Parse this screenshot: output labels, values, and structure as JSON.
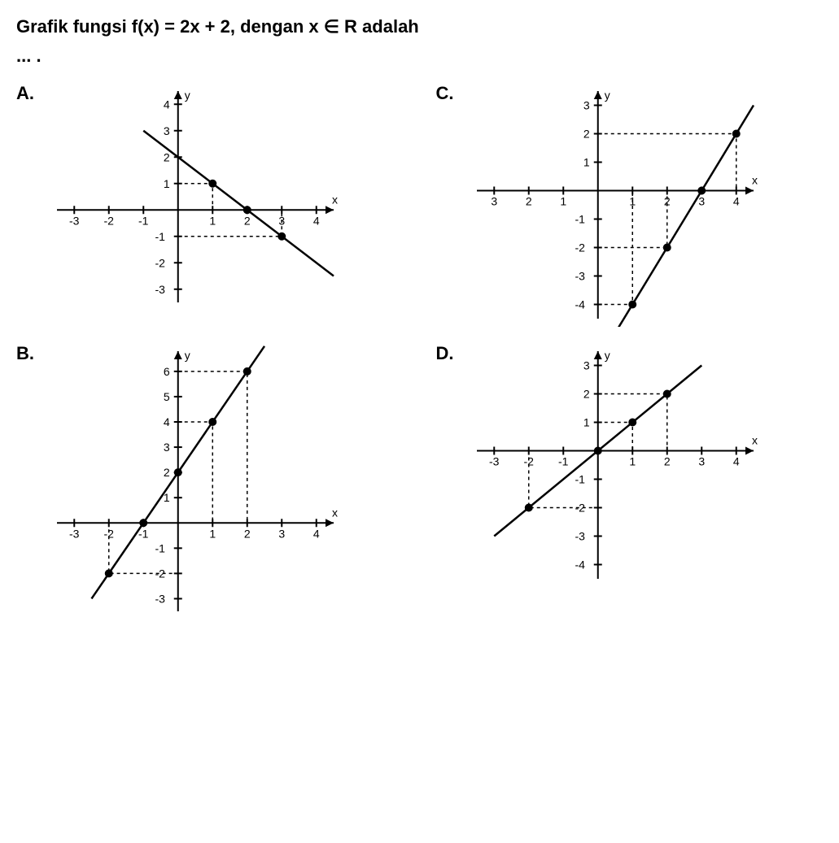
{
  "question": "Grafik fungsi f(x) = 2x + 2, dengan x ∈ R adalah",
  "dots": "... .",
  "options": {
    "A": {
      "label": "A.",
      "type": "line",
      "xlabel": "x",
      "ylabel": "y",
      "xlim": [
        -3.5,
        4.5
      ],
      "ylim": [
        -3.5,
        4.5
      ],
      "xticks": [
        -3,
        -2,
        -1,
        1,
        2,
        3,
        4
      ],
      "yticks": [
        -3,
        -2,
        -1,
        1,
        2,
        3,
        4
      ],
      "line_p1": [
        -1,
        3
      ],
      "line_p2": [
        4.5,
        -2.5
      ],
      "points": [
        [
          1,
          1
        ],
        [
          2,
          0
        ],
        [
          3,
          -1
        ]
      ],
      "dashes": [
        [
          [
            0,
            1
          ],
          [
            1,
            1
          ],
          [
            1,
            0
          ]
        ],
        [
          [
            0,
            -1
          ],
          [
            3,
            -1
          ],
          [
            3,
            0
          ]
        ]
      ],
      "tick_label_fontsize": 14,
      "axis_color": "#000000",
      "line_color": "#000000",
      "point_color": "#000000"
    },
    "B": {
      "label": "B.",
      "type": "line",
      "xlabel": "x",
      "ylabel": "y",
      "xlim": [
        -3.5,
        4.5
      ],
      "ylim": [
        -3.5,
        6.8
      ],
      "xticks": [
        -3,
        -2,
        -1,
        1,
        2,
        3,
        4
      ],
      "yticks": [
        -3,
        -2,
        -1,
        1,
        2,
        3,
        4,
        5,
        6
      ],
      "line_p1": [
        -2.5,
        -3
      ],
      "line_p2": [
        2.5,
        7
      ],
      "points": [
        [
          -2,
          -2
        ],
        [
          -1,
          0
        ],
        [
          0,
          2
        ],
        [
          1,
          4
        ],
        [
          2,
          6
        ]
      ],
      "dashes": [
        [
          [
            -2,
            0
          ],
          [
            -2,
            -2
          ],
          [
            0,
            -2
          ]
        ],
        [
          [
            0,
            4
          ],
          [
            1,
            4
          ],
          [
            1,
            0
          ]
        ],
        [
          [
            0,
            6
          ],
          [
            2,
            6
          ],
          [
            2,
            0
          ]
        ]
      ],
      "tick_label_fontsize": 14,
      "axis_color": "#000000",
      "line_color": "#000000",
      "point_color": "#000000"
    },
    "C": {
      "label": "C.",
      "type": "line",
      "xlabel": "x",
      "ylabel": "y",
      "xlim_left_labels": [
        3,
        2,
        1
      ],
      "xlim": [
        -3.5,
        4.5
      ],
      "ylim": [
        -4.5,
        3.5
      ],
      "xticks_left": [
        -3,
        -2,
        -1
      ],
      "xticks_right": [
        1,
        2,
        3,
        4
      ],
      "xtick_labels_left": [
        "3",
        "2",
        "1"
      ],
      "xtick_labels_right": [
        "1",
        "2",
        "3",
        "4"
      ],
      "yticks": [
        -4,
        -3,
        -2,
        -1,
        1,
        2,
        3
      ],
      "line_p1": [
        0.5,
        -5
      ],
      "line_p2": [
        4.5,
        3
      ],
      "points": [
        [
          1,
          -4
        ],
        [
          2,
          -2
        ],
        [
          3,
          0
        ],
        [
          4,
          2
        ]
      ],
      "dashes": [
        [
          [
            0,
            -4
          ],
          [
            1,
            -4
          ],
          [
            1,
            0
          ]
        ],
        [
          [
            0,
            -2
          ],
          [
            2,
            -2
          ],
          [
            2,
            0
          ]
        ],
        [
          [
            0,
            2
          ],
          [
            4,
            2
          ],
          [
            4,
            0
          ]
        ]
      ],
      "tick_label_fontsize": 14,
      "axis_color": "#000000",
      "line_color": "#000000",
      "point_color": "#000000"
    },
    "D": {
      "label": "D.",
      "type": "line",
      "xlabel": "x",
      "ylabel": "y",
      "xlim": [
        -3.5,
        4.5
      ],
      "ylim": [
        -4.5,
        3.5
      ],
      "xticks": [
        -3,
        -2,
        -1,
        1,
        2,
        3,
        4
      ],
      "yticks": [
        -4,
        -3,
        -2,
        -1,
        1,
        2,
        3
      ],
      "line_p1": [
        -3,
        -3
      ],
      "line_p2": [
        3,
        3
      ],
      "points": [
        [
          -2,
          -2
        ],
        [
          0,
          0
        ],
        [
          1,
          1
        ],
        [
          2,
          2
        ]
      ],
      "dashes": [
        [
          [
            -2,
            0
          ],
          [
            -2,
            -2
          ],
          [
            0,
            -2
          ]
        ],
        [
          [
            0,
            1
          ],
          [
            1,
            1
          ],
          [
            1,
            0
          ]
        ],
        [
          [
            0,
            2
          ],
          [
            2,
            2
          ],
          [
            2,
            0
          ]
        ]
      ],
      "tick_label_fontsize": 14,
      "axis_color": "#000000",
      "line_color": "#000000",
      "point_color": "#000000"
    }
  }
}
